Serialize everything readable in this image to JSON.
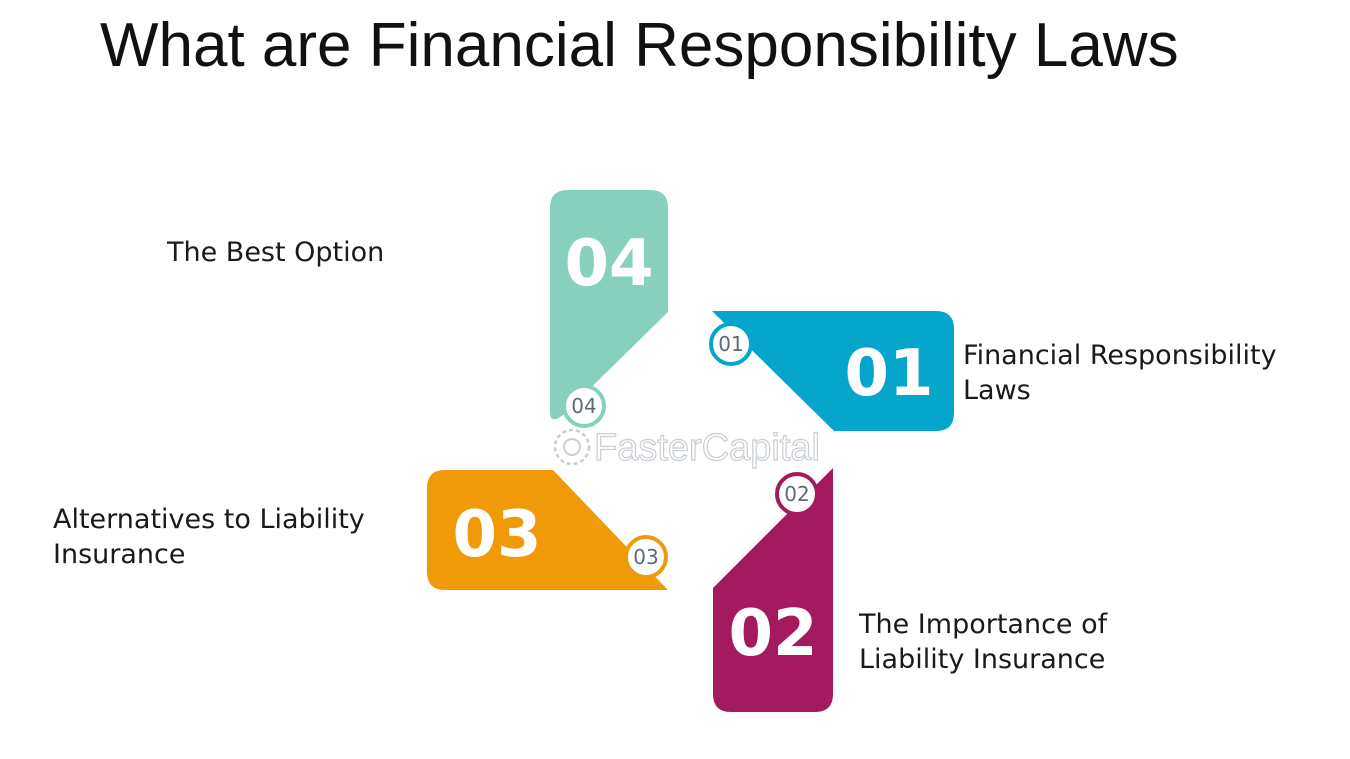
{
  "title": "What are Financial Responsibility Laws",
  "colors": {
    "step1": "#06a6cc",
    "step2": "#a31b5e",
    "step3": "#f09a0a",
    "step4": "#86d0bd"
  },
  "steps": [
    {
      "number": "01",
      "badge": "01",
      "label_lines": [
        "Financial Responsibility",
        "Laws"
      ]
    },
    {
      "number": "02",
      "badge": "02",
      "label_lines": [
        "The Importance of",
        "Liability Insurance"
      ]
    },
    {
      "number": "03",
      "badge": "03",
      "label_lines": [
        "Alternatives to Liability",
        "Insurance"
      ]
    },
    {
      "number": "04",
      "badge": "04",
      "label_lines": [
        "The Best Option"
      ]
    }
  ],
  "watermark": "FasterCapital"
}
